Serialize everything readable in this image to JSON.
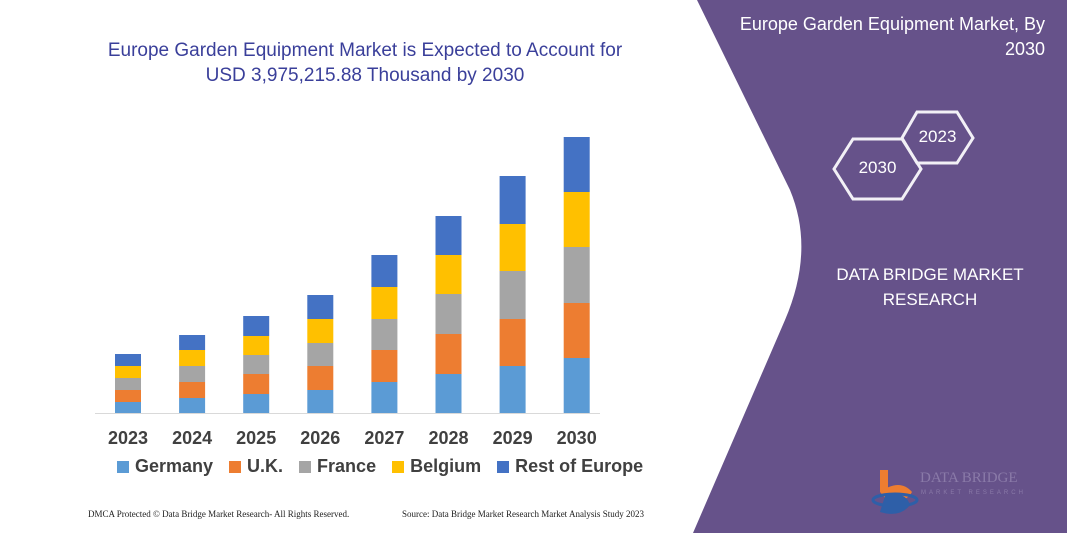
{
  "left_title": "Europe Garden Equipment Market is Expected to Account for USD 3,975,215.88 Thousand by 2030",
  "panel": {
    "title": "Europe Garden Equipment Market, By 2030",
    "hex_left": "2030",
    "hex_right": "2023",
    "brand": "DATA BRIDGE MARKET RESEARCH",
    "logo_text": "DATA BRIDGE",
    "logo_subtext": "MARKET RESEARCH",
    "color": "#66528a"
  },
  "footer": {
    "left": "DMCA Protected © Data Bridge Market Research- All Rights Reserved.",
    "right": "Source: Data Bridge Market Research Market Analysis Study 2023"
  },
  "chart_data": {
    "type": "bar",
    "stacked": true,
    "title": "",
    "xlabel": "",
    "ylabel": "",
    "ylim": [
      0,
      280
    ],
    "y_axis_shown": false,
    "grid": false,
    "legend_position": "bottom",
    "categories": [
      "2023",
      "2024",
      "2025",
      "2026",
      "2027",
      "2028",
      "2029",
      "2030"
    ],
    "series": [
      {
        "name": "Germany",
        "color": "#5b9bd5",
        "values": [
          11,
          15,
          19,
          23,
          31,
          39,
          47,
          55
        ]
      },
      {
        "name": "U.K.",
        "color": "#ed7d31",
        "values": [
          12,
          16,
          20,
          24,
          32,
          40,
          47,
          55
        ]
      },
      {
        "name": "France",
        "color": "#a5a5a5",
        "values": [
          12,
          16,
          19,
          23,
          31,
          40,
          48,
          56
        ]
      },
      {
        "name": "Belgium",
        "color": "#ffc000",
        "values": [
          12,
          16,
          19,
          24,
          32,
          39,
          47,
          55
        ]
      },
      {
        "name": "Rest of Europe",
        "color": "#4472c4",
        "values": [
          12,
          15,
          20,
          24,
          32,
          39,
          48,
          55
        ]
      }
    ]
  }
}
